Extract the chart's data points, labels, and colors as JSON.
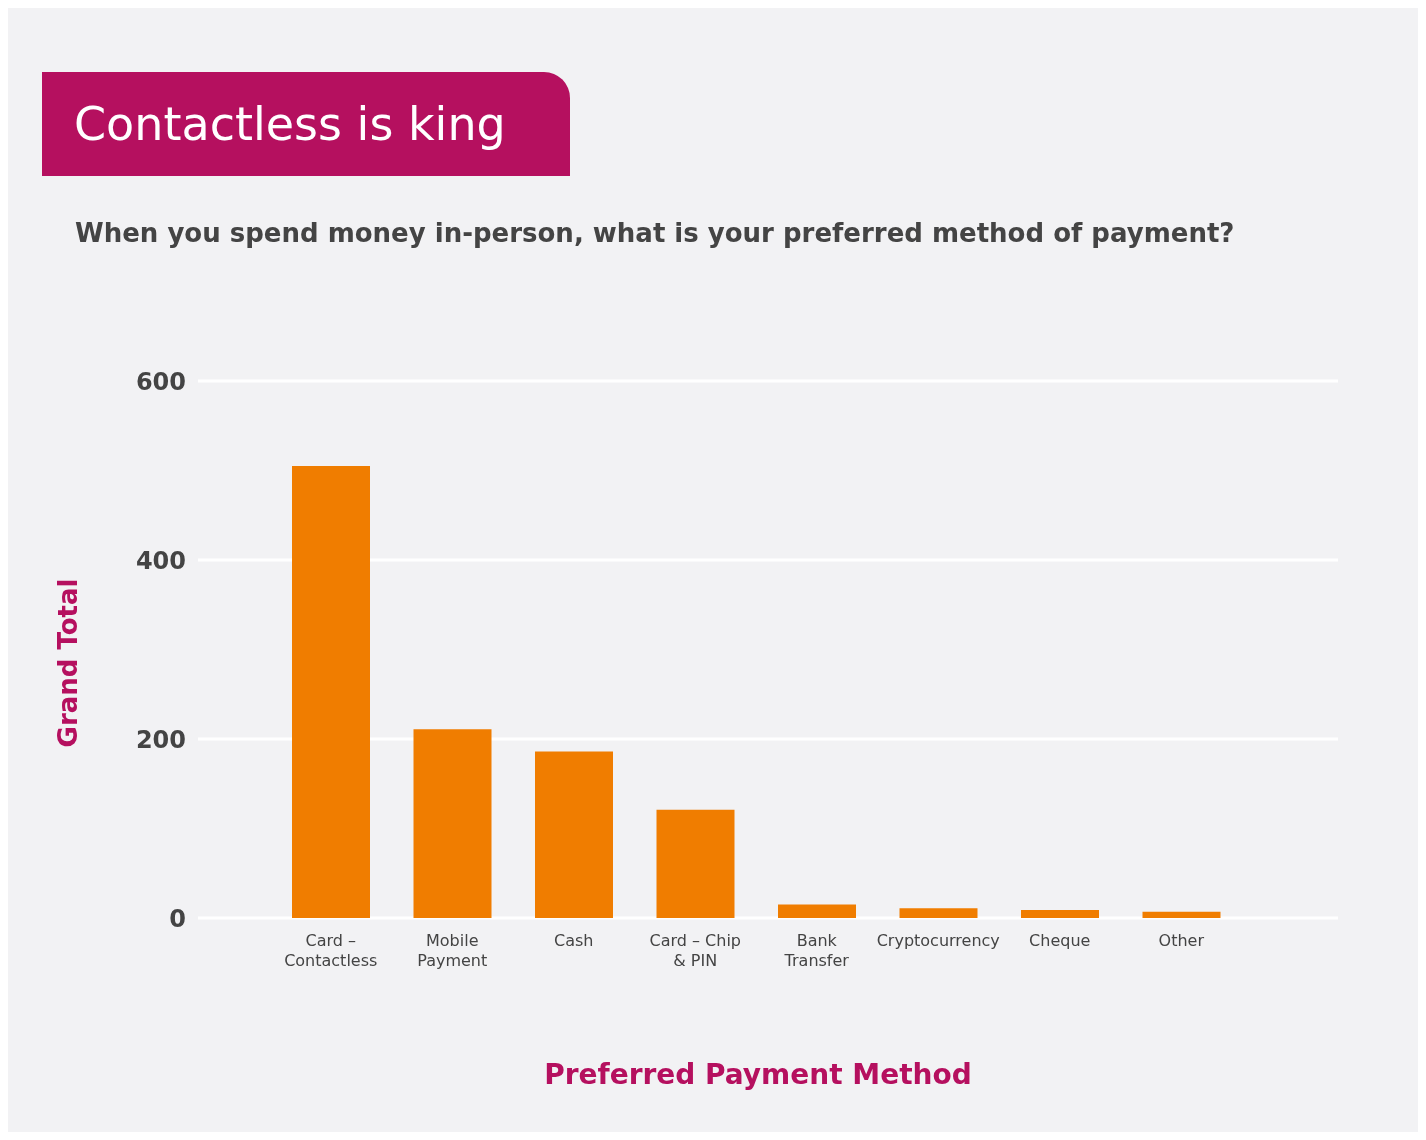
{
  "chart_data": {
    "type": "bar",
    "title": "Contactless is king",
    "subtitle": "When you spend money in-person, what is your preferred method of payment?",
    "xlabel": "Preferred Payment Method",
    "ylabel": "Grand Total",
    "categories": [
      "Card – Contactless",
      "Mobile Payment",
      "Cash",
      "Card – Chip & PIN",
      "Bank Transfer",
      "Cryptocurrency",
      "Cheque",
      "Other"
    ],
    "values": [
      505,
      211,
      186,
      121,
      15,
      11,
      9,
      7
    ],
    "color": "#f07d00",
    "ylim": [
      0,
      600
    ],
    "yticks": [
      0,
      200,
      400,
      600
    ],
    "grid": "y"
  }
}
